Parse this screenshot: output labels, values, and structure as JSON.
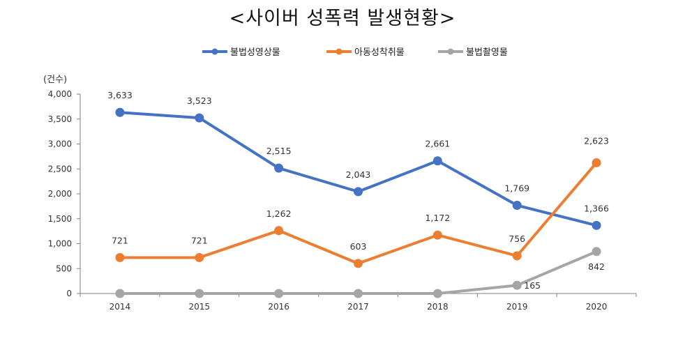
{
  "chart_data": {
    "type": "line",
    "title": "<사이버 성폭력 발생현황>",
    "ylabel": "(건수)",
    "categories": [
      "2014",
      "2015",
      "2016",
      "2017",
      "2018",
      "2019",
      "2020"
    ],
    "ylim": [
      0,
      4000
    ],
    "yticks": [
      0,
      500,
      1000,
      1500,
      2000,
      2500,
      3000,
      3500,
      4000
    ],
    "ytick_labels": [
      "0",
      "500",
      "1,000",
      "1,500",
      "2,000",
      "2,500",
      "3,000",
      "3,500",
      "4,000"
    ],
    "grid": false,
    "legend_position": "top-center",
    "series": [
      {
        "name": "불법성영상물",
        "color": "#4472C4",
        "values": [
          3633,
          3523,
          2515,
          2043,
          2661,
          1769,
          1366
        ],
        "labels": [
          "3,633",
          "3,523",
          "2,515",
          "2,043",
          "2,661",
          "1,769",
          "1,366"
        ]
      },
      {
        "name": "아동성착취물",
        "color": "#ED7D31",
        "values": [
          721,
          721,
          1262,
          603,
          1172,
          756,
          2623
        ],
        "labels": [
          "721",
          "721",
          "1,262",
          "603",
          "1,172",
          "756",
          "2,623"
        ]
      },
      {
        "name": "불법촬영물",
        "color": "#A5A5A5",
        "values": [
          0,
          0,
          0,
          0,
          0,
          165,
          842
        ],
        "labels": [
          "",
          "",
          "",
          "",
          "",
          "165",
          "842"
        ]
      }
    ]
  }
}
